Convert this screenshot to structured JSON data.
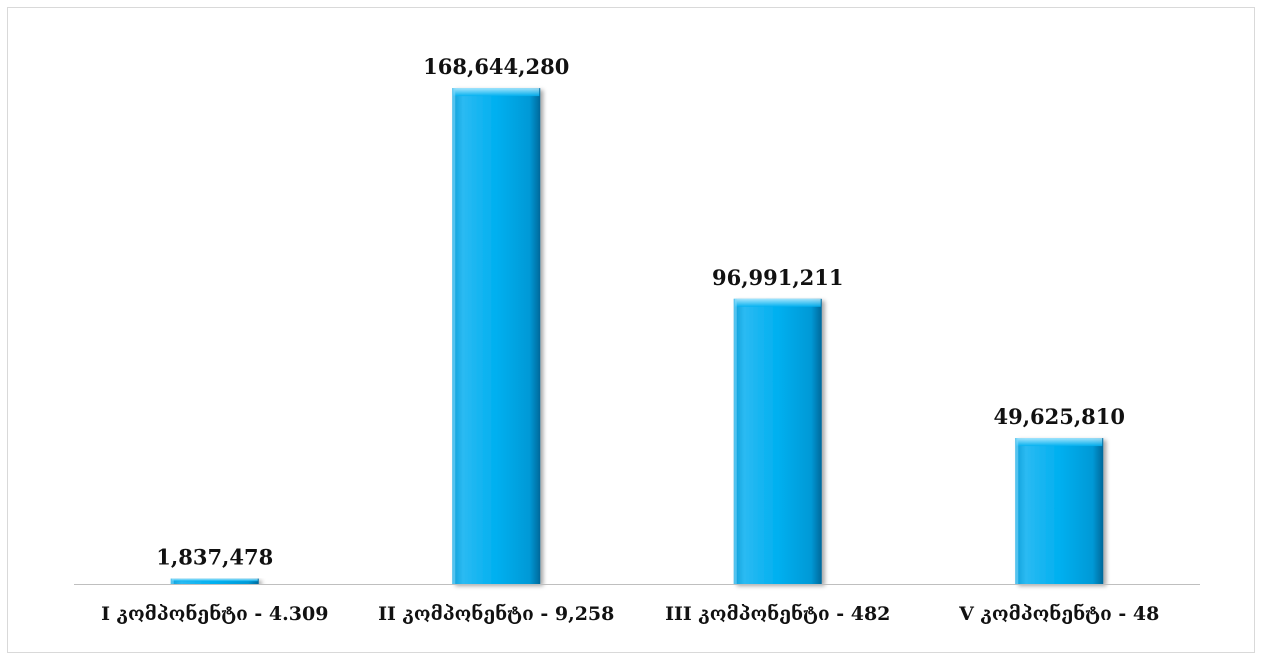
{
  "chart_data": {
    "type": "bar",
    "title": "",
    "xlabel": "",
    "ylabel": "",
    "categories": [
      "I კომპონენტი - 4.309",
      "II კომპონენტი - 9,258",
      "III კომპონენტი - 482",
      "V კომპონენტი - 48"
    ],
    "values": [
      1837478,
      168644280,
      96991211,
      49625810
    ],
    "value_labels": [
      "1,837,478",
      "168,644,280",
      "96,991,211",
      "49,625,810"
    ],
    "ylim": [
      0,
      185000000
    ],
    "grid": false,
    "legend": "none",
    "colors": {
      "bar_fill": "#00b0f0",
      "bar_highlight": "#7fd8fb",
      "bar_shadow": "#0079a8",
      "axis": "#bfbfbf",
      "text": "#111111"
    }
  }
}
